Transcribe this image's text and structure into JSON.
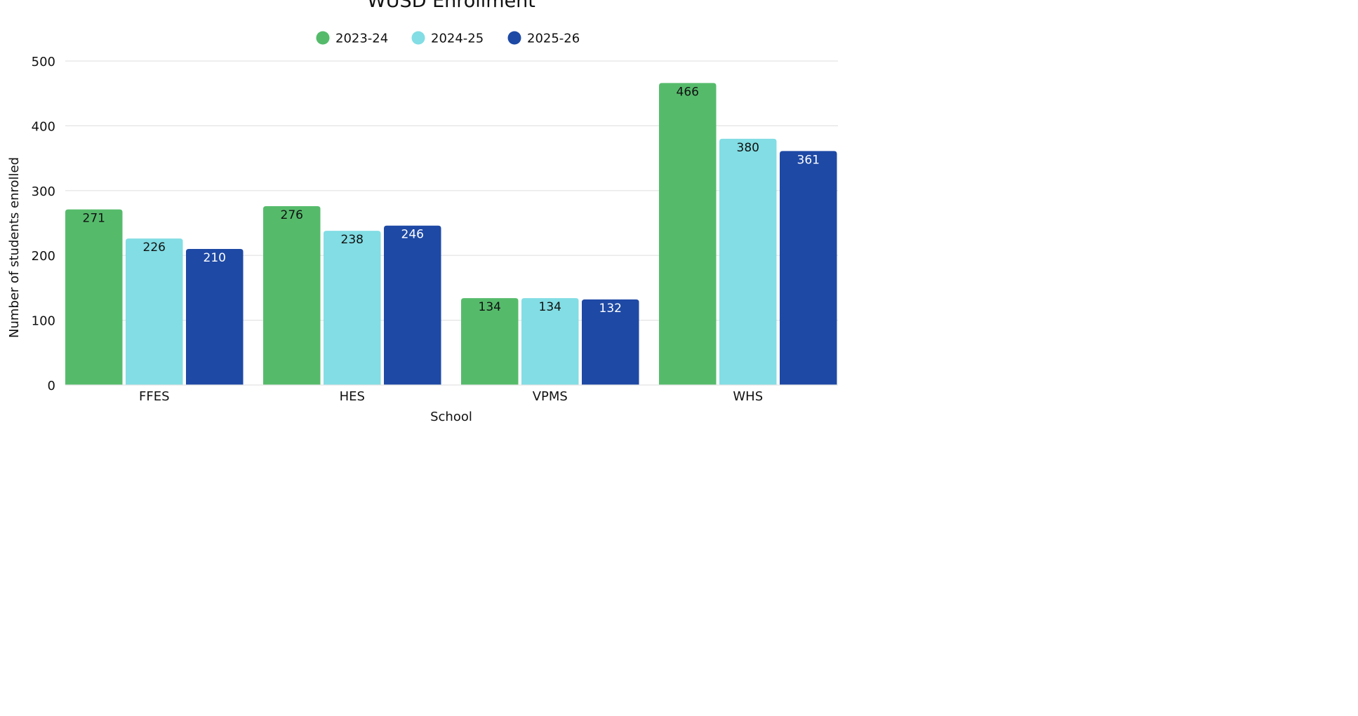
{
  "chart_data": {
    "type": "bar",
    "title": "WUSD Enrollment",
    "xlabel": "School",
    "ylabel": "Number of students enrolled",
    "categories": [
      "FFES",
      "HES",
      "VPMS",
      "WHS"
    ],
    "series": [
      {
        "name": "2023-24",
        "color": "#55bb6b",
        "label_color": "#111111",
        "values": [
          271,
          276,
          134,
          466
        ]
      },
      {
        "name": "2024-25",
        "color": "#82dde4",
        "label_color": "#111111",
        "values": [
          226,
          238,
          134,
          380
        ]
      },
      {
        "name": "2025-26",
        "color": "#1e49a5",
        "label_color": "#ffffff",
        "values": [
          210,
          246,
          132,
          361
        ]
      }
    ],
    "ylim": [
      0,
      500
    ],
    "yticks": [
      "0",
      "100",
      "200",
      "300",
      "400",
      "500"
    ],
    "grid": true,
    "legend_position": "top-center",
    "data_labels": "inside-top"
  }
}
